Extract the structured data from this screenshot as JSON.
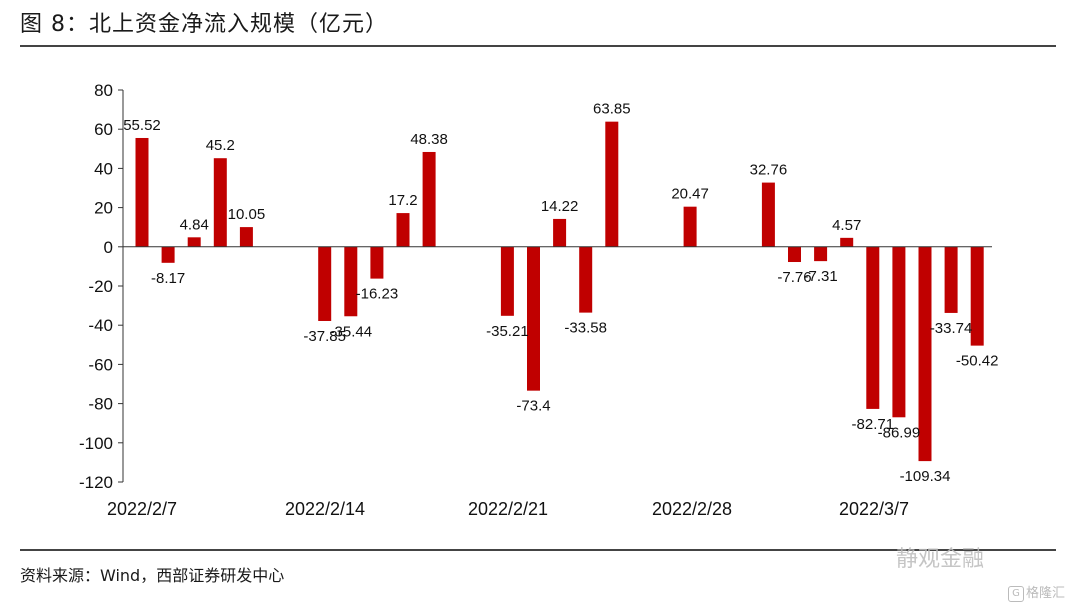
{
  "header": {
    "title": "图 8：北上资金净流入规模（亿元）"
  },
  "footer": {
    "source": "资料来源：Wind，西部证券研发中心"
  },
  "watermark": {
    "text": "静观金融",
    "brand": "格隆汇"
  },
  "colors": {
    "bar": "#C00000",
    "axis": "#333333"
  },
  "chart_data": {
    "type": "bar",
    "title": "图 8：北上资金净流入规模（亿元）",
    "ylim": [
      -120,
      80
    ],
    "yticks": [
      80,
      60,
      40,
      20,
      0,
      -20,
      -40,
      -60,
      -80,
      -100,
      -120
    ],
    "grid": false,
    "x_tick_labels": [
      "2022/2/7",
      "2022/2/14",
      "2022/2/21",
      "2022/2/28",
      "2022/3/7"
    ],
    "bars": [
      {
        "slot": 0,
        "value": 55.52
      },
      {
        "slot": 1,
        "value": -8.17
      },
      {
        "slot": 2,
        "value": 4.84
      },
      {
        "slot": 3,
        "value": 45.2
      },
      {
        "slot": 4,
        "value": 10.05
      },
      {
        "slot": 7,
        "value": -37.85
      },
      {
        "slot": 8,
        "value": -35.44
      },
      {
        "slot": 9,
        "value": -16.23
      },
      {
        "slot": 10,
        "value": 17.2
      },
      {
        "slot": 11,
        "value": 48.38
      },
      {
        "slot": 14,
        "value": -35.21
      },
      {
        "slot": 15,
        "value": -73.4
      },
      {
        "slot": 16,
        "value": 14.22
      },
      {
        "slot": 17,
        "value": -33.58
      },
      {
        "slot": 18,
        "value": 63.85
      },
      {
        "slot": 21,
        "value": 20.47
      },
      {
        "slot": 24,
        "value": 32.76
      },
      {
        "slot": 25,
        "value": -7.76
      },
      {
        "slot": 26,
        "value": -7.31
      },
      {
        "slot": 27,
        "value": 4.57
      },
      {
        "slot": 28,
        "value": -82.71
      },
      {
        "slot": 29,
        "value": -86.99
      },
      {
        "slot": 30,
        "value": -109.34
      },
      {
        "slot": 31,
        "value": -33.74
      },
      {
        "slot": 32,
        "value": -50.42
      }
    ],
    "data_labels": [
      "55.52",
      "-8.17",
      "4.84",
      "45.2",
      "10.05",
      "-37.85",
      "-35.44",
      "-16.23",
      "17.2",
      "48.38",
      "-35.21",
      "-73.4",
      "14.22",
      "-33.58",
      "63.85",
      "20.47",
      "32.76",
      "-7.76",
      "-7.31",
      "4.57",
      "-82.71",
      "-86.99",
      "-109.34",
      "-33.74",
      "-50.42"
    ]
  }
}
